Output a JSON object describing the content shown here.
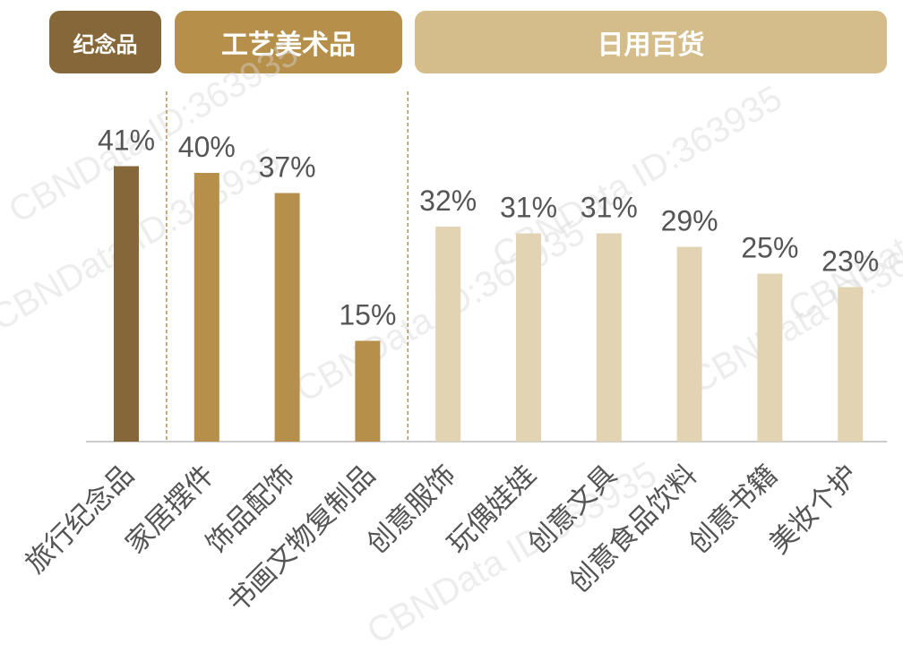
{
  "colors": {
    "souvenir": "#85673a",
    "crafts": "#b68f4a",
    "daily": "#e2d4b2",
    "daily_header": "#d5bd8b",
    "value_text": "#555555",
    "axis": "#cccccc",
    "divider": "#b68f4a"
  },
  "groups": [
    {
      "label": "纪念品",
      "color": "#85673a"
    },
    {
      "label": "工艺美术品",
      "color": "#b68f4a"
    },
    {
      "label": "日用百货",
      "color": "#d5bd8b"
    }
  ],
  "watermark": "CBNData ID:363935",
  "chart_data": {
    "type": "bar",
    "categories": [
      "旅行纪念品",
      "家居摆件",
      "饰品配饰",
      "书画文物复制品",
      "创意服饰",
      "玩偶娃娃",
      "创意文具",
      "创意食品饮料",
      "创意书籍",
      "美妆个护"
    ],
    "values": [
      41,
      40,
      37,
      15,
      32,
      31,
      31,
      29,
      25,
      23
    ],
    "value_labels": [
      "41%",
      "40%",
      "37%",
      "15%",
      "32%",
      "31%",
      "31%",
      "29%",
      "25%",
      "23%"
    ],
    "category_groups": [
      0,
      1,
      1,
      1,
      2,
      2,
      2,
      2,
      2,
      2
    ],
    "unit": "%",
    "ylim": [
      0,
      60
    ]
  }
}
